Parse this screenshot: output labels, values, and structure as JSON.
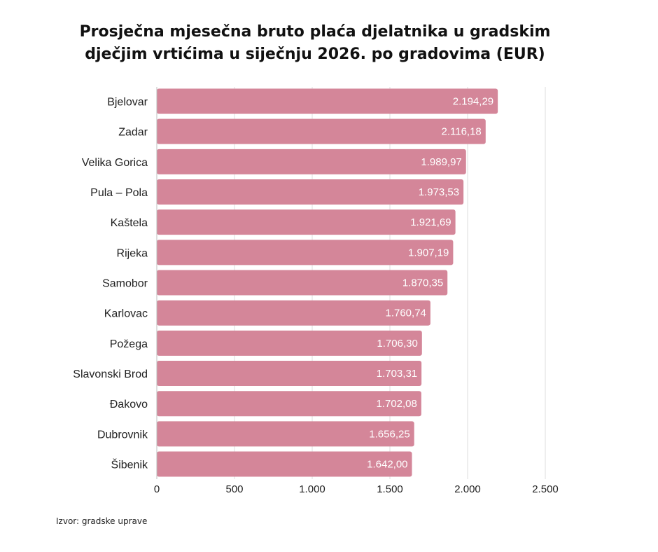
{
  "chart_data": {
    "type": "bar",
    "orientation": "horizontal",
    "title_lines": [
      "Prosječna mjesečna bruto plaća djelatnika u gradskim",
      "dječjim vrtićima u siječnju 2026. po gradovima (EUR)"
    ],
    "categories": [
      "Bjelovar",
      "Zadar",
      "Velika Gorica",
      "Pula – Pola",
      "Kaštela",
      "Rijeka",
      "Samobor",
      "Karlovac",
      "Požega",
      "Slavonski Brod",
      "Đakovo",
      "Dubrovnik",
      "Šibenik"
    ],
    "values": [
      2194.29,
      2116.18,
      1989.97,
      1973.53,
      1921.69,
      1907.19,
      1870.35,
      1760.74,
      1706.3,
      1703.31,
      1702.08,
      1656.25,
      1642.0
    ],
    "value_labels": [
      "2.194,29",
      "2.116,18",
      "1.989,97",
      "1.973,53",
      "1.921,69",
      "1.907,19",
      "1.870,35",
      "1.760,74",
      "1.706,30",
      "1.703,31",
      "1.702,08",
      "1.656,25",
      "1.642,00"
    ],
    "xlim": [
      0,
      2500
    ],
    "xticks": [
      0,
      500,
      1000,
      1500,
      2000,
      2500
    ],
    "xtick_labels": [
      "0",
      "500",
      "1.000",
      "1.500",
      "2.000",
      "2.500"
    ],
    "xlabel": "",
    "ylabel": "",
    "grid": true,
    "bar_color": "#d48699",
    "label_color": "#ffffff"
  },
  "source": "Izvor: gradske uprave"
}
